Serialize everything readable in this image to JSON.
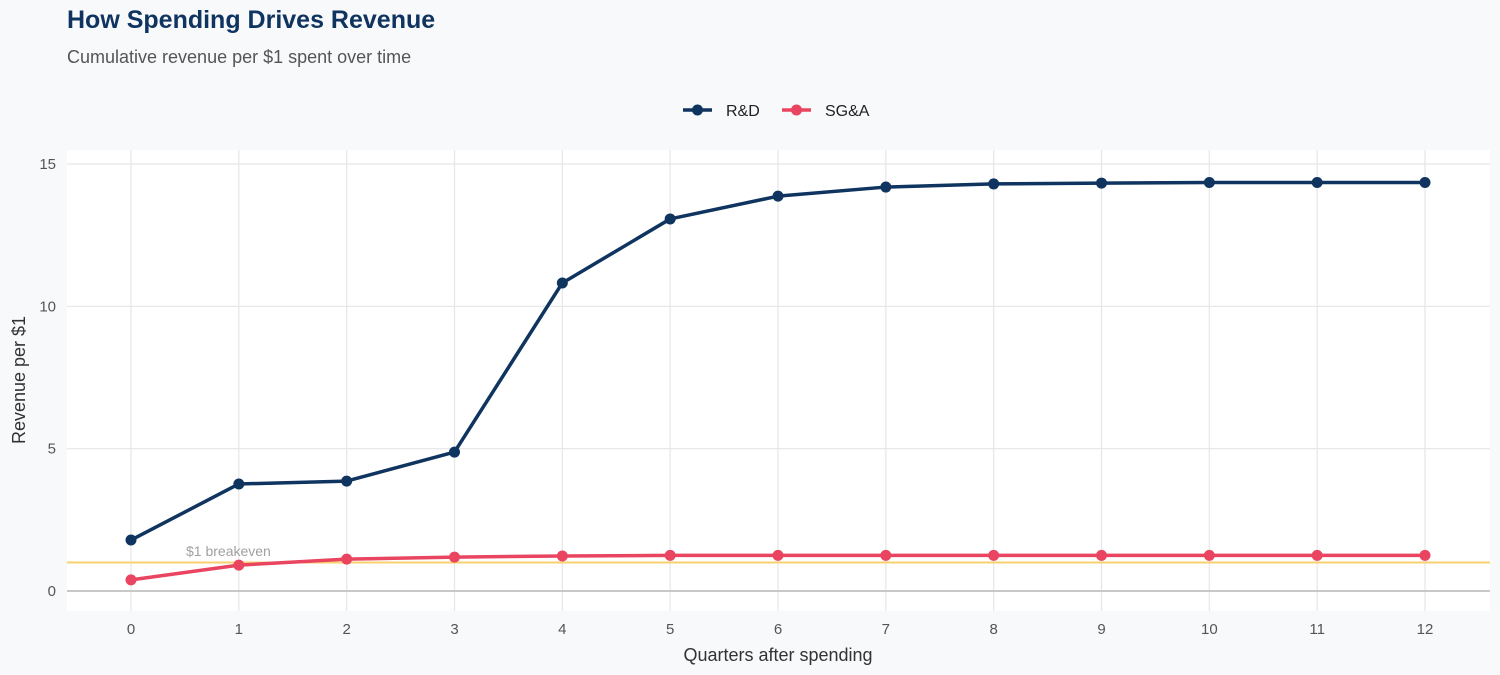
{
  "chart_data": {
    "type": "line",
    "title": "How Spending Drives Revenue",
    "subtitle": "Cumulative revenue per $1 spent over time",
    "xlabel": "Quarters after spending",
    "ylabel": "Revenue per $1",
    "x": [
      0,
      1,
      2,
      3,
      4,
      5,
      6,
      7,
      8,
      9,
      10,
      11,
      12
    ],
    "xlim": [
      -0.6,
      12.6
    ],
    "ylim": [
      -0.7,
      15.5
    ],
    "yticks": [
      0,
      5,
      10,
      15
    ],
    "grid": true,
    "legend": "top-center",
    "series": [
      {
        "name": "R&D",
        "color": "#0f3460",
        "values": [
          1.79,
          3.76,
          3.86,
          4.88,
          10.82,
          13.07,
          13.87,
          14.19,
          14.3,
          14.33,
          14.35,
          14.35,
          14.35
        ]
      },
      {
        "name": "SG&A",
        "color": "#e94560",
        "values": [
          0.39,
          0.91,
          1.12,
          1.19,
          1.23,
          1.25,
          1.25,
          1.25,
          1.25,
          1.25,
          1.25,
          1.25,
          1.25
        ]
      }
    ],
    "reference_line": {
      "y": 1,
      "label": "$1 breakeven",
      "color": "#f9d26e"
    }
  }
}
